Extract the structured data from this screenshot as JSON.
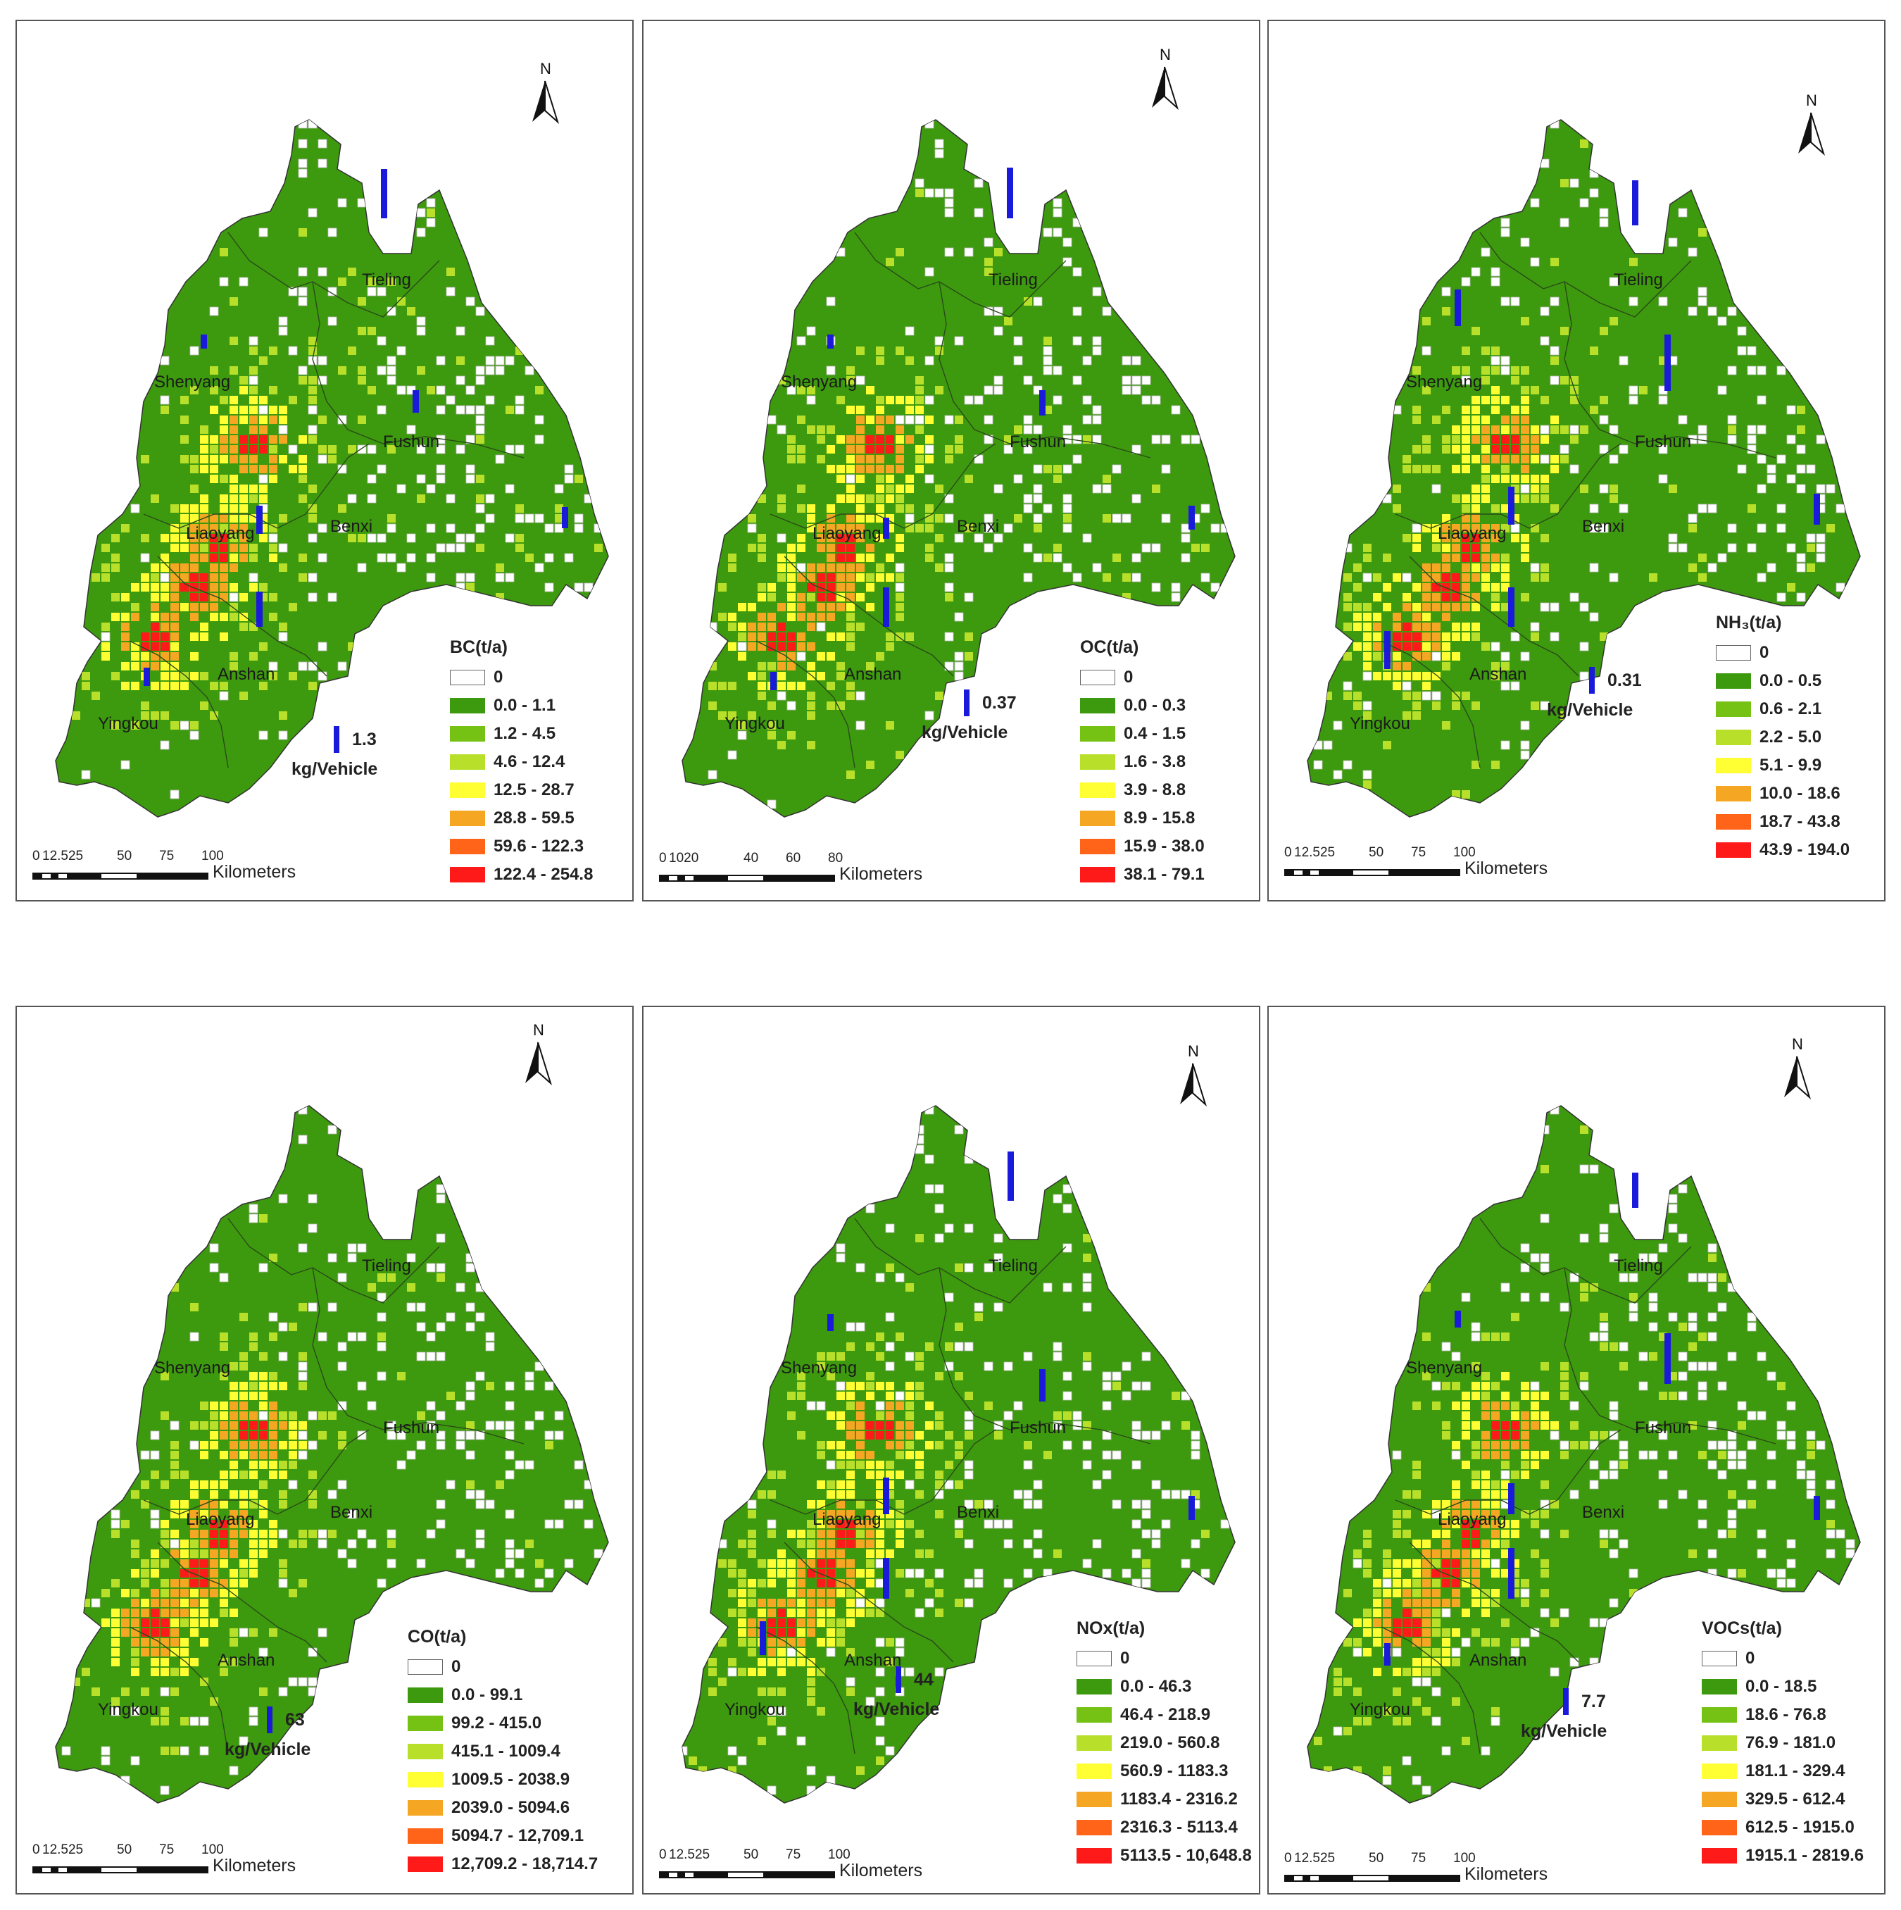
{
  "city_labels": {
    "tieling": "Tieling",
    "shenyang": "Shenyang",
    "fushun": "Fushun",
    "liaoyang": "Liaoyang",
    "benxi": "Benxi",
    "anshan": "Anshan",
    "yingkou": "Yingkou"
  },
  "north_label": "N",
  "vehicle_unit": "kg/Vehicle",
  "scale_unit": "Kilometers",
  "colors": {
    "class0": "#ffffff",
    "class1": "#3d9a0e",
    "class2": "#75c214",
    "class3": "#b8e02a",
    "class4": "#ffff33",
    "class5": "#f5a623",
    "class6": "#ff6419",
    "class7": "#ff1a1a",
    "vehicle_bar": "#1a1adb"
  },
  "panels": [
    {
      "id": "bc",
      "legend_title": "BC(t/a)",
      "classes": [
        "0",
        "0.0 - 1.1",
        "1.2 - 4.5",
        "4.6 - 12.4",
        "12.5 - 28.7",
        "28.8 - 59.5",
        "59.6 - 122.3",
        "122.4 - 254.8"
      ],
      "vehicle_value": "1.3",
      "scale_ticks": [
        "0",
        "12.525",
        "50",
        "75",
        "100"
      ],
      "has_city_bars": true
    },
    {
      "id": "oc",
      "legend_title": "OC(t/a)",
      "classes": [
        "0",
        "0.0 - 0.3",
        "0.4 - 1.5",
        "1.6 - 3.8",
        "3.9 - 8.8",
        "8.9 - 15.8",
        "15.9 - 38.0",
        "38.1 - 79.1"
      ],
      "vehicle_value": "0.37",
      "scale_ticks": [
        "0",
        "1020",
        "40",
        "60",
        "80"
      ],
      "has_city_bars": true
    },
    {
      "id": "nh3",
      "legend_title": "NH₃(t/a)",
      "classes": [
        "0",
        "0.0 - 0.5",
        "0.6 - 2.1",
        "2.2 - 5.0",
        "5.1 - 9.9",
        "10.0 - 18.6",
        "18.7 - 43.8",
        "43.9 - 194.0"
      ],
      "vehicle_value": "0.31",
      "scale_ticks": [
        "0",
        "12.525",
        "50",
        "75",
        "100"
      ],
      "has_city_bars": true
    },
    {
      "id": "co",
      "legend_title": "CO(t/a)",
      "classes": [
        "0",
        "0.0 - 99.1",
        "99.2 - 415.0",
        "415.1 - 1009.4",
        "1009.5 - 2038.9",
        "2039.0 - 5094.6",
        "5094.7 - 12,709.1",
        "12,709.2 - 18,714.7"
      ],
      "vehicle_value": "63",
      "scale_ticks": [
        "0",
        "12.525",
        "50",
        "75",
        "100"
      ],
      "has_city_bars": false
    },
    {
      "id": "nox",
      "legend_title": "NOx(t/a)",
      "classes": [
        "0",
        "0.0 - 46.3",
        "46.4 - 218.9",
        "219.0 - 560.8",
        "560.9 - 1183.3",
        "1183.4 - 2316.2",
        "2316.3 - 5113.4",
        "5113.5 - 10,648.8"
      ],
      "vehicle_value": "44",
      "scale_ticks": [
        "0",
        "12.525",
        "50",
        "75",
        "100"
      ],
      "has_city_bars": true
    },
    {
      "id": "vocs",
      "legend_title": "VOCs(t/a)",
      "classes": [
        "0",
        "0.0 - 18.5",
        "18.6 - 76.8",
        "76.9 - 181.0",
        "181.1 - 329.4",
        "329.5 - 612.4",
        "612.5 - 1915.0",
        "1915.1 - 2819.6"
      ],
      "vehicle_value": "7.7",
      "scale_ticks": [
        "0",
        "12.525",
        "50",
        "75",
        "100"
      ],
      "has_city_bars": true
    }
  ]
}
